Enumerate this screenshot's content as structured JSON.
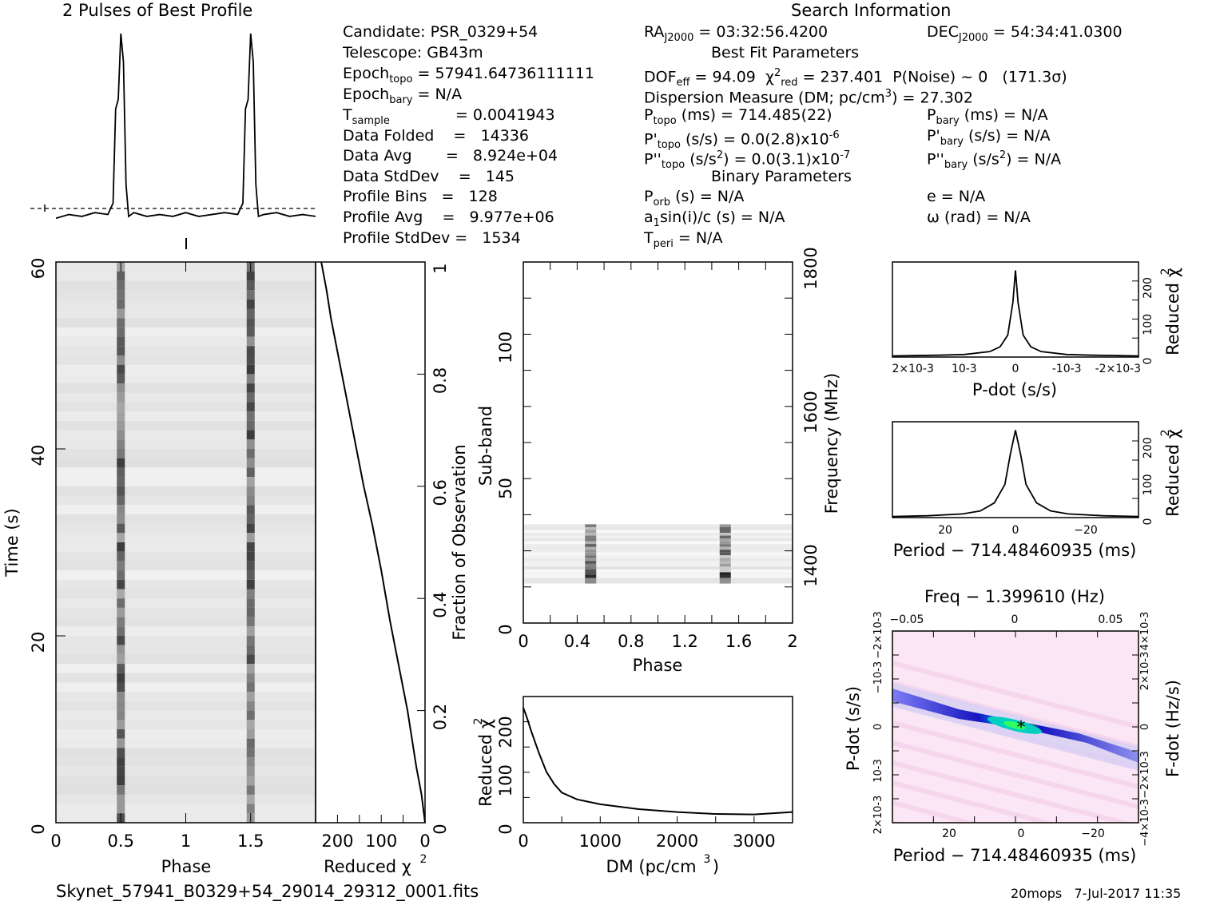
{
  "header": {
    "profile_title": "2 Pulses of Best Profile",
    "search_title": "Search Information"
  },
  "info": {
    "candidate": "Candidate:  PSR_0329+54",
    "telescope": "Telescope:  GB43m",
    "epoch_topo": "= 57941.64736111111",
    "epoch_bary": "= N/A",
    "t_sample": "=   0.0041943",
    "data_folded": "Data Folded    =   14336",
    "data_avg": "Data Avg       =   8.924e+04",
    "data_stddev": "Data StdDev    =   145",
    "profile_bins": "Profile Bins   =   128",
    "profile_avg": "Profile Avg    =   9.977e+06",
    "profile_stddev": "Profile StdDev =   1534"
  },
  "search": {
    "ra": "= 03:32:56.4200",
    "dec": "= 54:34:41.0300",
    "best_fit_title": "Best Fit Parameters",
    "dof": "= 94.09",
    "chi_red": "= 237.401",
    "p_noise": "P(Noise) ~ 0",
    "sigma": "(171.3σ)",
    "dm": "Dispersion Measure (DM; pc/cm",
    "dm_val": ") = 27.302",
    "p_topo": "(ms) =  714.485(22)",
    "p_bary": "(ms) = N/A",
    "pd_topo": "(s/s) = 0.0(2.8)x10",
    "pd_topo_exp": "-6",
    "pd_bary": "(s/s) = N/A",
    "pdd_topo": "(s/s",
    "pdd_topo_val": ") = 0.0(3.1)x10",
    "pdd_topo_exp": "-7",
    "pdd_bary": ") = N/A",
    "binary_title": "Binary Parameters",
    "p_orb": "(s) = N/A",
    "e": "e = N/A",
    "a1sini": "sin(i)/c (s) = N/A",
    "omega": "ω (rad) = N/A",
    "t_peri": "= N/A"
  },
  "footer": {
    "filename": "Skynet_57941_B0329+54_29014_29312_0001.fits",
    "stamp": "20mops   7-Jul-2017 11:35"
  },
  "colors": {
    "trace": "#000000",
    "marker": "#00aa00"
  },
  "chart_data": [
    {
      "type": "line",
      "title": "2 Pulses of Best Profile",
      "x": [
        0,
        0.1,
        0.2,
        0.3,
        0.4,
        0.44,
        0.46,
        0.48,
        0.5,
        0.52,
        0.54,
        0.56,
        0.6,
        0.7,
        0.8,
        0.9,
        1.0,
        1.1,
        1.2,
        1.3,
        1.4,
        1.44,
        1.46,
        1.48,
        1.5,
        1.52,
        1.54,
        1.56,
        1.6,
        1.7,
        1.8,
        1.9,
        2.0
      ],
      "values": [
        0.02,
        0.04,
        0.03,
        0.05,
        0.04,
        0.1,
        0.6,
        0.65,
        1.0,
        0.85,
        0.2,
        0.03,
        0.05,
        0.03,
        0.04,
        0.03,
        0.05,
        0.03,
        0.04,
        0.05,
        0.04,
        0.1,
        0.6,
        0.65,
        1.0,
        0.85,
        0.2,
        0.03,
        0.04,
        0.05,
        0.03,
        0.04,
        0.03
      ]
    },
    {
      "type": "heatmap",
      "xlabel": "Phase",
      "ylabel": "Time (s)",
      "xlim": [
        0,
        2
      ],
      "ylim": [
        0,
        60
      ],
      "xticks": [
        "0",
        "0.5",
        "1",
        "1.5"
      ],
      "yticks": [
        "0",
        "20",
        "40",
        "60"
      ],
      "pulse_phases": [
        0.5,
        1.5
      ]
    },
    {
      "type": "line",
      "xlabel": "Reduced χ2",
      "ylabel": "Fraction of Observation",
      "xticks": [
        "200",
        "100",
        "0"
      ],
      "yticks": [
        "0",
        "0.2",
        "0.4",
        "0.6",
        "0.8",
        "1"
      ],
      "x": [
        0,
        8,
        20,
        40,
        60,
        80,
        100,
        120,
        140,
        160,
        180,
        200,
        215,
        225,
        237
      ],
      "y": [
        0,
        0.05,
        0.1,
        0.2,
        0.28,
        0.36,
        0.45,
        0.53,
        0.6,
        0.68,
        0.76,
        0.84,
        0.9,
        0.95,
        1.0
      ]
    },
    {
      "type": "heatmap",
      "xlabel": "Phase",
      "ylabel": "Sub-band",
      "y2label": "Frequency (MHz)",
      "xlim": [
        0,
        2
      ],
      "ylim": [
        0,
        128
      ],
      "xticks": [
        "0",
        "0.4",
        "0.8",
        "1.2",
        "1.6",
        "2"
      ],
      "yticks": [
        "0",
        "50",
        "100"
      ],
      "y2ticks": [
        "1400",
        "1600",
        "1800"
      ],
      "band_subbands": [
        14,
        35
      ]
    },
    {
      "type": "line",
      "xlabel": "DM (pc/cm3)",
      "ylabel": "Reduced χ2",
      "xlim": [
        0,
        3500
      ],
      "ylim": [
        0,
        260
      ],
      "xticks": [
        "0",
        "1000",
        "2000",
        "3000"
      ],
      "yticks": [
        "0",
        "100",
        "200"
      ],
      "x": [
        0,
        50,
        100,
        200,
        300,
        400,
        500,
        700,
        1000,
        1500,
        2000,
        2500,
        3000,
        3500
      ],
      "y": [
        237,
        215,
        190,
        145,
        105,
        80,
        62,
        48,
        38,
        28,
        22,
        18,
        17,
        22
      ]
    },
    {
      "type": "line",
      "xlabel": "P-dot (s/s)",
      "ylabel": "Reduced χ2",
      "xticks": [
        "2×10-3",
        "10-3",
        "0",
        "-10-3",
        "-2×10-3"
      ],
      "yticks": [
        "0",
        "100",
        "200"
      ],
      "x": [
        2.4,
        2.0,
        1.5,
        1.0,
        0.5,
        0.3,
        0.15,
        0.05,
        0,
        -0.05,
        -0.15,
        -0.3,
        -0.5,
        -1.0,
        -1.5,
        -2.0,
        -2.4
      ],
      "y": [
        3,
        4,
        5,
        7,
        15,
        28,
        60,
        150,
        237,
        150,
        60,
        28,
        15,
        7,
        5,
        4,
        3
      ]
    },
    {
      "type": "line",
      "xlabel": "Period − 714.48460935 (ms)",
      "ylabel": "Reduced χ2",
      "xticks": [
        "20",
        "0",
        "−20"
      ],
      "yticks": [
        "0",
        "100",
        "200"
      ],
      "x": [
        35,
        25,
        15,
        10,
        6,
        3,
        1.5,
        0,
        -1.5,
        -3,
        -6,
        -10,
        -15,
        -25,
        -35
      ],
      "y": [
        3,
        5,
        10,
        18,
        40,
        90,
        170,
        237,
        170,
        90,
        40,
        18,
        10,
        5,
        3
      ]
    },
    {
      "type": "heatmap",
      "title": "Freq − 1.399610 (Hz)",
      "xlabel": "Period − 714.48460935 (ms)",
      "ylabel": "P-dot (s/s)",
      "y2label": "F-dot (Hz/s)",
      "xticks": [
        "20",
        "0",
        "−20"
      ],
      "x2ticks": [
        "−0.05",
        "0",
        "0.05"
      ],
      "yticks": [
        "2×10-3",
        "10-3",
        "0",
        "−10-3",
        "−2×10-3"
      ],
      "y2ticks": [
        "−4×10-3",
        "−2×10-3",
        "0",
        "2×10-3",
        "4×10-3"
      ]
    }
  ]
}
